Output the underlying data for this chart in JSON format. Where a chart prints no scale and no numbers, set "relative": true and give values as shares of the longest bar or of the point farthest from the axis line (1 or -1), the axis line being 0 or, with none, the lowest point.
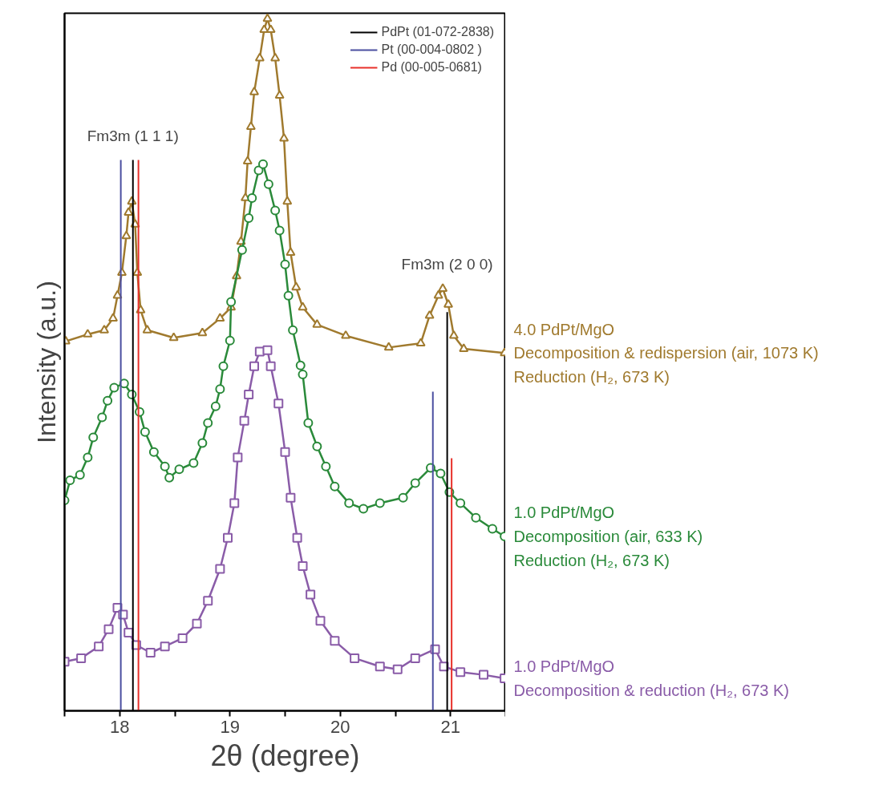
{
  "chart_data": {
    "type": "line",
    "relative": true,
    "xlabel": "2θ (degree)",
    "ylabel": "Intensity (a.u.)",
    "xlim": [
      17.5,
      21.5
    ],
    "xticks": [
      {
        "value": 17.5,
        "label": null
      },
      18,
      {
        "value": 18.5,
        "label": null
      },
      19,
      {
        "value": 19.5,
        "label": null
      },
      20,
      {
        "value": 20.5,
        "label": null
      },
      21,
      {
        "value": 21.5,
        "label": null
      }
    ],
    "tick_labels": "x",
    "grid": false,
    "legend": "top right",
    "line_style": "solid",
    "annotations": [
      "Fm3m (1 1 1)",
      "Fm3m (2 0 0)"
    ],
    "series": [
      {
        "name": "4.0 PdPt/MgO\nDecomposition & redispersion (air, 1073 K)\nReduction (H₂, 673 K)",
        "color": "#a07a2e",
        "marker": "triangle",
        "x": [
          17.51,
          17.71,
          17.86,
          17.94,
          17.98,
          18.02,
          18.06,
          18.08,
          18.11,
          18.14,
          18.16,
          18.19,
          18.25,
          18.49,
          18.75,
          18.91,
          19.01,
          19.06,
          19.1,
          19.14,
          19.16,
          19.19,
          19.22,
          19.27,
          19.31,
          19.34,
          19.37,
          19.41,
          19.45,
          19.49,
          19.52,
          19.55,
          19.6,
          19.66,
          19.79,
          20.05,
          20.44,
          20.73,
          20.81,
          20.89,
          20.93,
          20.98,
          21.03,
          21.12,
          21.49
        ],
        "values": [
          0.534,
          0.544,
          0.55,
          0.567,
          0.6,
          0.633,
          0.686,
          0.72,
          0.736,
          0.703,
          0.633,
          0.579,
          0.55,
          0.539,
          0.546,
          0.567,
          0.583,
          0.628,
          0.678,
          0.741,
          0.794,
          0.844,
          0.894,
          0.943,
          0.984,
          1.0,
          0.984,
          0.943,
          0.889,
          0.827,
          0.736,
          0.662,
          0.612,
          0.583,
          0.558,
          0.542,
          0.525,
          0.531,
          0.571,
          0.6,
          0.61,
          0.587,
          0.542,
          0.523,
          0.517
        ]
      },
      {
        "name": "1.0 PdPt/MgO\nDecomposition (air, 633 K)\nReduction (H₂, 673 K)",
        "color": "#2a8a3a",
        "marker": "circle",
        "x": [
          17.5,
          17.55,
          17.64,
          17.71,
          17.76,
          17.84,
          17.89,
          17.95,
          18.04,
          18.11,
          18.18,
          18.23,
          18.31,
          18.41,
          18.45,
          18.54,
          18.67,
          18.75,
          18.8,
          18.87,
          18.91,
          18.94,
          19.0,
          19.01,
          19.11,
          19.17,
          19.2,
          19.26,
          19.3,
          19.35,
          19.41,
          19.45,
          19.5,
          19.53,
          19.57,
          19.64,
          19.66,
          19.71,
          19.79,
          19.87,
          19.95,
          20.08,
          20.21,
          20.36,
          20.57,
          20.68,
          20.82,
          20.91,
          20.99,
          21.09,
          21.23,
          21.38,
          21.49
        ],
        "values": [
          0.304,
          0.333,
          0.341,
          0.366,
          0.395,
          0.424,
          0.448,
          0.467,
          0.473,
          0.457,
          0.432,
          0.403,
          0.374,
          0.353,
          0.337,
          0.349,
          0.358,
          0.387,
          0.416,
          0.44,
          0.465,
          0.498,
          0.535,
          0.591,
          0.666,
          0.712,
          0.741,
          0.781,
          0.79,
          0.761,
          0.723,
          0.694,
          0.645,
          0.6,
          0.55,
          0.499,
          0.486,
          0.416,
          0.382,
          0.353,
          0.324,
          0.3,
          0.292,
          0.3,
          0.308,
          0.329,
          0.351,
          0.343,
          0.316,
          0.3,
          0.279,
          0.263,
          0.252
        ]
      },
      {
        "name": "1.0 PdPt/MgO\nDecomposition & reduction (H₂, 673 K)",
        "color": "#8a5ca8",
        "marker": "square",
        "x": [
          17.5,
          17.65,
          17.81,
          17.9,
          17.98,
          18.03,
          18.08,
          18.15,
          18.28,
          18.41,
          18.57,
          18.7,
          18.8,
          18.91,
          18.98,
          19.04,
          19.07,
          19.13,
          19.17,
          19.22,
          19.27,
          19.34,
          19.37,
          19.44,
          19.5,
          19.55,
          19.61,
          19.66,
          19.73,
          19.82,
          19.95,
          20.13,
          20.36,
          20.52,
          20.68,
          20.86,
          20.94,
          21.09,
          21.3,
          21.49
        ],
        "values": [
          0.071,
          0.076,
          0.093,
          0.118,
          0.149,
          0.139,
          0.113,
          0.095,
          0.084,
          0.093,
          0.105,
          0.126,
          0.159,
          0.205,
          0.25,
          0.3,
          0.366,
          0.419,
          0.457,
          0.498,
          0.519,
          0.521,
          0.498,
          0.444,
          0.374,
          0.308,
          0.25,
          0.209,
          0.168,
          0.13,
          0.101,
          0.076,
          0.064,
          0.06,
          0.076,
          0.089,
          0.064,
          0.056,
          0.052,
          0.047
        ]
      },
      {
        "name": "PdPt (01-072-2838)",
        "color": "#000000",
        "marker": "none",
        "x": [
          18.12,
          18.12
        ],
        "values": [
          0,
          0.796
        ]
      },
      {
        "name": "Pt (00-004-0802 )",
        "color": "#4b4fa0",
        "marker": "none",
        "x": [
          18.01,
          18.01
        ],
        "values": [
          0,
          0.796
        ]
      },
      {
        "name": "Pd (00-005-0681)",
        "color": "#e8302a",
        "marker": "none",
        "x": [
          18.17,
          18.17
        ],
        "values": [
          0,
          0.796
        ]
      },
      {
        "color": "#000000",
        "marker": "none",
        "x": [
          20.97,
          20.97
        ],
        "values": [
          0,
          0.576
        ]
      },
      {
        "color": "#4b4fa0",
        "marker": "none",
        "x": [
          20.84,
          20.84
        ],
        "values": [
          0,
          0.461
        ]
      },
      {
        "color": "#e8302a",
        "marker": "none",
        "x": [
          21.01,
          21.01
        ],
        "values": [
          0,
          0.365
        ]
      }
    ]
  }
}
